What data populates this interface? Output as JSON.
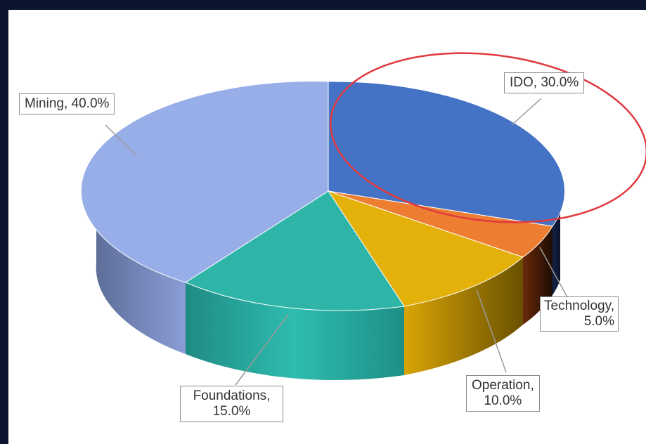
{
  "chart_data": {
    "type": "pie",
    "style": "3d",
    "slices": [
      {
        "name": "IDO",
        "value": 30.0,
        "label_line1": "IDO, 30.0%",
        "label_line2": "",
        "color": "#4472C4"
      },
      {
        "name": "Technology",
        "value": 5.0,
        "label_line1": "Technology,",
        "label_line2": "5.0%",
        "color": "#ED7D31"
      },
      {
        "name": "Operation",
        "value": 10.0,
        "label_line1": "Operation,",
        "label_line2": "10.0%",
        "color": "#E4B00A"
      },
      {
        "name": "Foundations",
        "value": 15.0,
        "label_line1": "Foundations,",
        "label_line2": "15.0%",
        "color": "#2EB5A8"
      },
      {
        "name": "Mining",
        "value": 40.0,
        "label_line1": "Mining, 40.0%",
        "label_line2": "",
        "color": "#98AEE8"
      }
    ],
    "annotation": {
      "shape": "ellipse",
      "color": "#E0393E",
      "target": "IDO"
    }
  }
}
